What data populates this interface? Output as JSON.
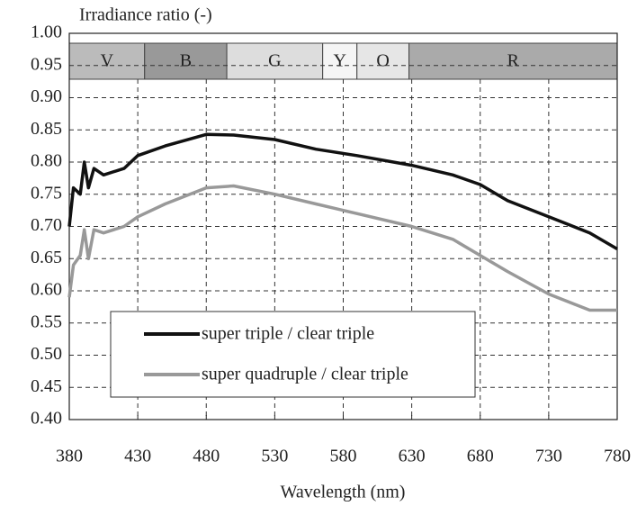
{
  "chart_data": {
    "type": "line",
    "ylabel": "Irradiance ratio (-)",
    "xlabel": "Wavelength (nm)",
    "x": [
      380,
      383,
      388,
      391,
      394,
      398,
      405,
      420,
      430,
      450,
      480,
      500,
      530,
      560,
      590,
      630,
      660,
      680,
      700,
      730,
      760,
      780
    ],
    "series": [
      {
        "name": "super triple / clear triple",
        "color": "#111111",
        "values": [
          0.7,
          0.76,
          0.75,
          0.8,
          0.76,
          0.79,
          0.78,
          0.79,
          0.81,
          0.825,
          0.843,
          0.842,
          0.835,
          0.82,
          0.81,
          0.795,
          0.78,
          0.765,
          0.74,
          0.715,
          0.69,
          0.665
        ]
      },
      {
        "name": "super quadruple / clear triple",
        "color": "#999999",
        "values": [
          0.59,
          0.64,
          0.655,
          0.695,
          0.65,
          0.695,
          0.69,
          0.7,
          0.715,
          0.735,
          0.76,
          0.763,
          0.75,
          0.735,
          0.72,
          0.7,
          0.68,
          0.655,
          0.63,
          0.595,
          0.57,
          0.57
        ]
      }
    ],
    "bands": [
      {
        "label": "V",
        "start": 380,
        "end": 435,
        "color": "#bbbbbb"
      },
      {
        "label": "B",
        "start": 435,
        "end": 495,
        "color": "#999999"
      },
      {
        "label": "G",
        "start": 495,
        "end": 565,
        "color": "#dddddd"
      },
      {
        "label": "Y",
        "start": 565,
        "end": 590,
        "color": "#f5f5f5"
      },
      {
        "label": "O",
        "start": 590,
        "end": 628,
        "color": "#e6e6e6"
      },
      {
        "label": "R",
        "start": 628,
        "end": 780,
        "color": "#aaaaaa"
      }
    ],
    "xlim": [
      380,
      780
    ],
    "xticks": [
      380,
      430,
      480,
      530,
      580,
      630,
      680,
      730,
      780
    ],
    "ylim": [
      0.4,
      1.0
    ],
    "yticks": [
      {
        "value": 0.4,
        "label": "0.40"
      },
      {
        "value": 0.45,
        "label": "0.45"
      },
      {
        "value": 0.5,
        "label": "0.50"
      },
      {
        "value": 0.55,
        "label": "0.55"
      },
      {
        "value": 0.6,
        "label": "0.60"
      },
      {
        "value": 0.65,
        "label": "0.65"
      },
      {
        "value": 0.7,
        "label": "0.70"
      },
      {
        "value": 0.75,
        "label": "0.75"
      },
      {
        "value": 0.8,
        "label": "0.80"
      },
      {
        "value": 0.85,
        "label": "0.85"
      },
      {
        "value": 0.9,
        "label": "0.90"
      },
      {
        "value": 0.95,
        "label": "0.95"
      },
      {
        "value": 1.0,
        "label": "1.00"
      }
    ],
    "grid": true
  }
}
